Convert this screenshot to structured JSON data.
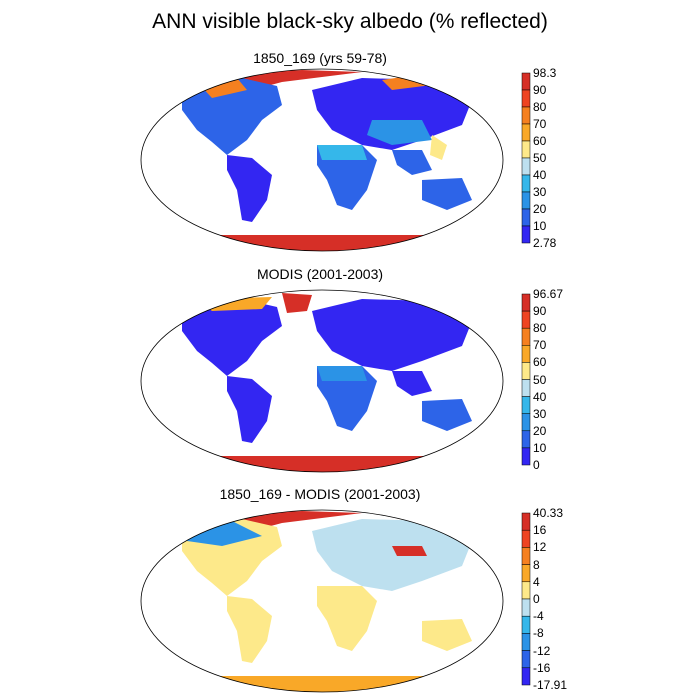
{
  "title": "ANN visible black-sky albedo (% reflected)",
  "panels": [
    {
      "title": "1850_169 (yrs 59-78)",
      "colorbar": {
        "labels": [
          "98.3",
          "90",
          "80",
          "70",
          "60",
          "50",
          "40",
          "30",
          "20",
          "10",
          "2.78"
        ],
        "colors": [
          "#d62f27",
          "#ee4422",
          "#f58020",
          "#f9a828",
          "#fde98a",
          "#bde0ef",
          "#35b7ea",
          "#2b93e6",
          "#2d64e8",
          "#3326f2"
        ]
      }
    },
    {
      "title": "MODIS (2001-2003)",
      "colorbar": {
        "labels": [
          "96.67",
          "90",
          "80",
          "70",
          "60",
          "50",
          "40",
          "30",
          "20",
          "10",
          "0"
        ],
        "colors": [
          "#d62f27",
          "#ee4422",
          "#f58020",
          "#f9a828",
          "#fde98a",
          "#bde0ef",
          "#35b7ea",
          "#2b93e6",
          "#2d64e8",
          "#3326f2"
        ]
      }
    },
    {
      "title": "1850_169 - MODIS (2001-2003)",
      "colorbar": {
        "labels": [
          "40.33",
          "16",
          "12",
          "8",
          "4",
          "0",
          "-4",
          "-8",
          "-12",
          "-16",
          "-17.91"
        ],
        "colors": [
          "#d62f27",
          "#ee4422",
          "#f58020",
          "#f9a828",
          "#fde98a",
          "#bde0ef",
          "#35b7ea",
          "#2b93e6",
          "#2d64e8",
          "#3326f2"
        ]
      }
    }
  ]
}
